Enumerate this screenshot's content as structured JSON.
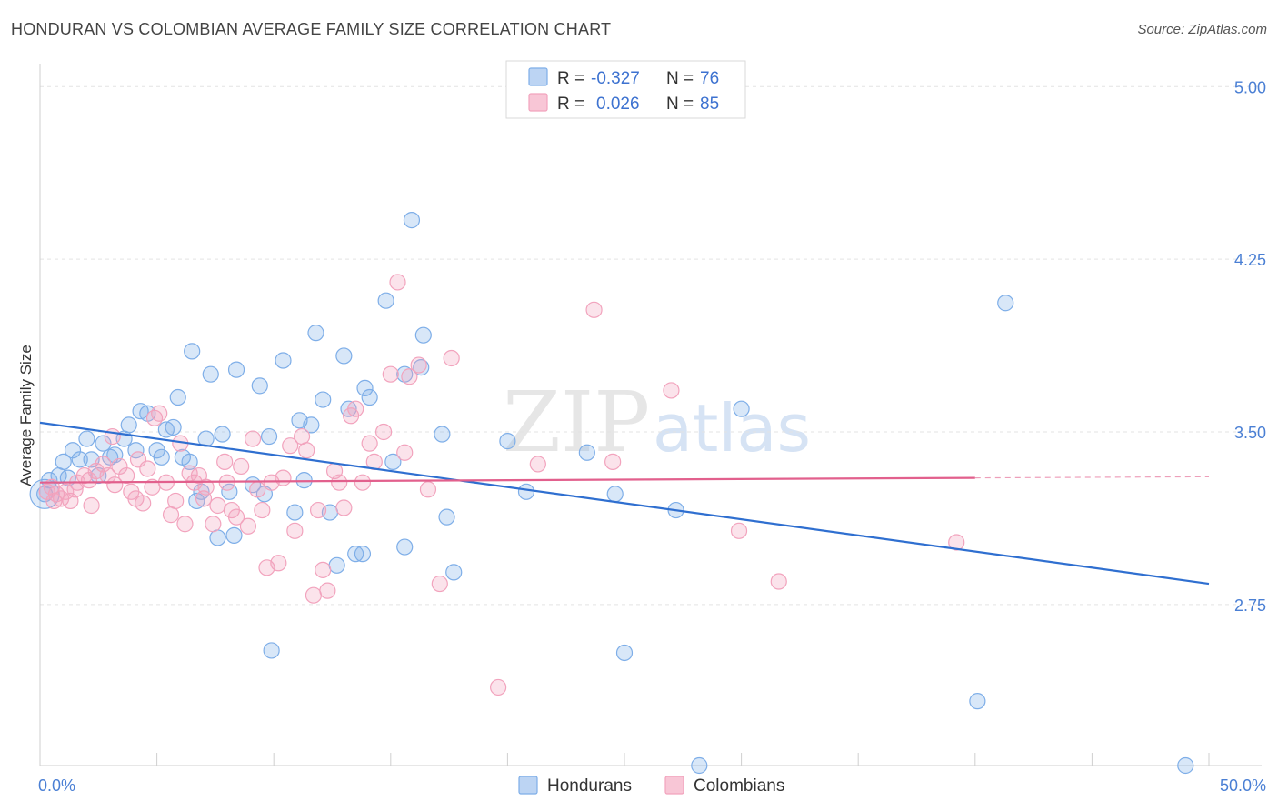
{
  "header": {
    "title": "HONDURAN VS COLOMBIAN AVERAGE FAMILY SIZE CORRELATION CHART",
    "source": "Source: ZipAtlas.com"
  },
  "watermark": {
    "zip": "ZIP",
    "atlas": "atlas"
  },
  "stats_legend": [
    {
      "r_label": "R =",
      "r_value": "-0.327",
      "n_label": "N =",
      "n_value": "76"
    },
    {
      "r_label": "R =",
      "r_value": "0.026",
      "n_label": "N =",
      "n_value": "85"
    }
  ],
  "chart_data": {
    "type": "scatter",
    "title": "HONDURAN VS COLOMBIAN AVERAGE FAMILY SIZE CORRELATION CHART",
    "ylabel": "Average Family Size",
    "xlim": [
      0,
      50
    ],
    "ylim": [
      2.05,
      5.1
    ],
    "x_tick_labels": [
      "0.0%",
      "50.0%"
    ],
    "y_ticks": [
      2.75,
      3.5,
      4.25,
      5.0
    ],
    "y_tick_labels": [
      "2.75",
      "3.50",
      "4.25",
      "5.00"
    ],
    "grid": true,
    "legend_position": "bottom",
    "series": [
      {
        "name": "Hondurans",
        "color": "#7eaee8",
        "trend": {
          "x0": 0,
          "y0": 3.54,
          "x1": 50,
          "y1": 2.84,
          "color": "#2f6fd0"
        },
        "points": [
          [
            0.4,
            3.29
          ],
          [
            0.8,
            3.31
          ],
          [
            1.0,
            3.37
          ],
          [
            1.2,
            3.3
          ],
          [
            1.4,
            3.42
          ],
          [
            1.7,
            3.38
          ],
          [
            2.0,
            3.47
          ],
          [
            2.2,
            3.38
          ],
          [
            2.5,
            3.31
          ],
          [
            2.7,
            3.45
          ],
          [
            3.0,
            3.39
          ],
          [
            3.2,
            3.4
          ],
          [
            3.6,
            3.47
          ],
          [
            3.8,
            3.53
          ],
          [
            4.1,
            3.42
          ],
          [
            4.3,
            3.59
          ],
          [
            4.6,
            3.58
          ],
          [
            5.0,
            3.42
          ],
          [
            5.2,
            3.39
          ],
          [
            5.4,
            3.51
          ],
          [
            5.7,
            3.52
          ],
          [
            5.9,
            3.65
          ],
          [
            6.1,
            3.39
          ],
          [
            6.4,
            3.37
          ],
          [
            6.5,
            3.85
          ],
          [
            6.7,
            3.2
          ],
          [
            6.9,
            3.24
          ],
          [
            7.1,
            3.47
          ],
          [
            7.3,
            3.75
          ],
          [
            7.6,
            3.04
          ],
          [
            7.8,
            3.49
          ],
          [
            8.1,
            3.24
          ],
          [
            8.3,
            3.05
          ],
          [
            8.4,
            3.77
          ],
          [
            9.1,
            3.27
          ],
          [
            9.4,
            3.7
          ],
          [
            9.6,
            3.23
          ],
          [
            9.8,
            3.48
          ],
          [
            9.9,
            2.55
          ],
          [
            10.4,
            3.81
          ],
          [
            10.9,
            3.15
          ],
          [
            11.1,
            3.55
          ],
          [
            11.3,
            3.29
          ],
          [
            11.6,
            3.53
          ],
          [
            11.8,
            3.93
          ],
          [
            12.1,
            3.64
          ],
          [
            12.4,
            3.15
          ],
          [
            12.7,
            2.92
          ],
          [
            13.0,
            3.83
          ],
          [
            13.2,
            3.6
          ],
          [
            13.5,
            2.97
          ],
          [
            13.8,
            2.97
          ],
          [
            13.9,
            3.69
          ],
          [
            14.1,
            3.65
          ],
          [
            14.8,
            4.07
          ],
          [
            15.1,
            3.37
          ],
          [
            15.6,
            3.0
          ],
          [
            15.9,
            4.42
          ],
          [
            15.6,
            3.75
          ],
          [
            16.3,
            3.78
          ],
          [
            16.4,
            3.92
          ],
          [
            17.2,
            3.49
          ],
          [
            17.4,
            3.13
          ],
          [
            17.7,
            2.89
          ],
          [
            20.0,
            3.46
          ],
          [
            20.8,
            3.24
          ],
          [
            23.4,
            3.41
          ],
          [
            24.6,
            3.23
          ],
          [
            25.0,
            2.54
          ],
          [
            27.2,
            3.16
          ],
          [
            28.2,
            2.05
          ],
          [
            30.0,
            3.6
          ],
          [
            40.1,
            2.33
          ],
          [
            41.3,
            4.06
          ],
          [
            49.0,
            2.05
          ],
          [
            0.2,
            3.23
          ]
        ]
      },
      {
        "name": "Colombians",
        "color": "#f2a3bd",
        "trend": {
          "x0": 0,
          "y0": 3.28,
          "x1": 40,
          "y1": 3.3,
          "color": "#e2608d"
        },
        "points": [
          [
            0.5,
            3.26
          ],
          [
            0.7,
            3.23
          ],
          [
            0.9,
            3.21
          ],
          [
            1.1,
            3.24
          ],
          [
            1.3,
            3.2
          ],
          [
            1.6,
            3.28
          ],
          [
            1.9,
            3.31
          ],
          [
            2.2,
            3.18
          ],
          [
            2.4,
            3.33
          ],
          [
            2.7,
            3.36
          ],
          [
            2.9,
            3.31
          ],
          [
            3.1,
            3.48
          ],
          [
            3.2,
            3.27
          ],
          [
            3.4,
            3.35
          ],
          [
            3.7,
            3.31
          ],
          [
            3.9,
            3.24
          ],
          [
            4.1,
            3.21
          ],
          [
            4.2,
            3.38
          ],
          [
            4.4,
            3.19
          ],
          [
            4.6,
            3.34
          ],
          [
            4.8,
            3.26
          ],
          [
            4.9,
            3.56
          ],
          [
            5.1,
            3.58
          ],
          [
            5.4,
            3.28
          ],
          [
            5.6,
            3.14
          ],
          [
            5.8,
            3.2
          ],
          [
            6.0,
            3.45
          ],
          [
            6.2,
            3.1
          ],
          [
            6.4,
            3.32
          ],
          [
            6.6,
            3.28
          ],
          [
            6.8,
            3.31
          ],
          [
            7.0,
            3.21
          ],
          [
            7.1,
            3.26
          ],
          [
            7.4,
            3.1
          ],
          [
            7.6,
            3.18
          ],
          [
            7.9,
            3.37
          ],
          [
            8.0,
            3.28
          ],
          [
            8.2,
            3.16
          ],
          [
            8.4,
            3.13
          ],
          [
            8.6,
            3.35
          ],
          [
            8.9,
            3.09
          ],
          [
            9.1,
            3.47
          ],
          [
            9.3,
            3.25
          ],
          [
            9.5,
            3.16
          ],
          [
            9.7,
            2.91
          ],
          [
            9.9,
            3.28
          ],
          [
            10.2,
            2.93
          ],
          [
            10.4,
            3.3
          ],
          [
            10.7,
            3.44
          ],
          [
            10.9,
            3.07
          ],
          [
            11.2,
            3.48
          ],
          [
            11.4,
            3.42
          ],
          [
            11.7,
            2.79
          ],
          [
            11.9,
            3.16
          ],
          [
            12.1,
            2.9
          ],
          [
            12.3,
            2.81
          ],
          [
            12.6,
            3.33
          ],
          [
            12.8,
            3.28
          ],
          [
            13.0,
            3.17
          ],
          [
            13.3,
            3.57
          ],
          [
            13.5,
            3.6
          ],
          [
            13.8,
            3.28
          ],
          [
            14.1,
            3.45
          ],
          [
            14.3,
            3.37
          ],
          [
            14.7,
            3.5
          ],
          [
            15.0,
            3.75
          ],
          [
            15.3,
            4.15
          ],
          [
            15.6,
            3.41
          ],
          [
            15.8,
            3.74
          ],
          [
            16.2,
            3.79
          ],
          [
            16.6,
            3.25
          ],
          [
            17.1,
            2.84
          ],
          [
            17.6,
            3.82
          ],
          [
            19.6,
            2.39
          ],
          [
            21.3,
            3.36
          ],
          [
            23.7,
            4.03
          ],
          [
            24.5,
            3.37
          ],
          [
            27.0,
            3.68
          ],
          [
            29.9,
            3.07
          ],
          [
            31.6,
            2.85
          ],
          [
            39.2,
            3.02
          ],
          [
            0.3,
            3.24
          ],
          [
            0.6,
            3.2
          ],
          [
            1.5,
            3.25
          ],
          [
            2.1,
            3.29
          ]
        ]
      }
    ]
  },
  "bottom_legend": [
    {
      "label": "Hondurans",
      "color": "#7eaee8"
    },
    {
      "label": "Colombians",
      "color": "#f2a3bd"
    }
  ]
}
